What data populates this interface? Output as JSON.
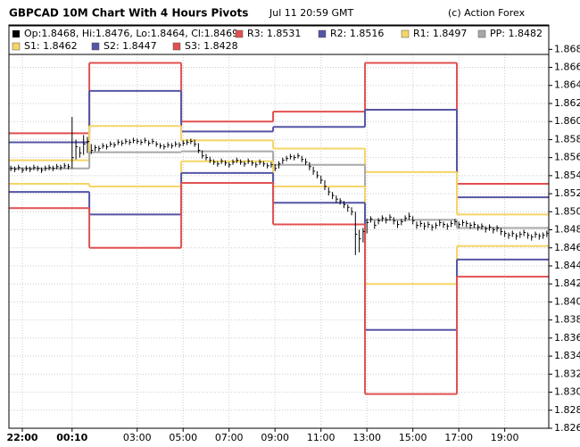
{
  "chart_data": {
    "type": "ohlc",
    "title": "GBPCAD 10M Chart With 4 Hours Pivots",
    "date": "Jul 11 20:59 GMT",
    "credit": "(c) Action Forex",
    "ohlc_label": "Op:1.8468, Hi:1.8476, Lo:1.8464, Cl:1.8469",
    "ohlc_color": "#000000",
    "grid": true,
    "ylim": [
      1.826,
      1.8707
    ],
    "yticks": [
      1.826,
      1.828,
      {
        "value": 1.83,
        "label": "1.830"
      },
      1.832,
      1.834,
      1.836,
      1.838,
      {
        "value": 1.84,
        "label": "1.840"
      },
      1.842,
      1.844,
      1.846,
      1.848,
      {
        "value": 1.85,
        "label": "1.850"
      },
      1.852,
      1.854,
      1.856,
      1.858,
      {
        "value": 1.86,
        "label": "1.860"
      },
      1.862,
      1.864,
      1.866,
      1.868
    ],
    "xlim": [
      0,
      141
    ],
    "xticks": [
      {
        "value": 3,
        "label": "22:00"
      },
      {
        "value": 16,
        "label": "00:10"
      },
      {
        "value": 33,
        "label": "03:00"
      },
      {
        "value": 45,
        "label": "05:00"
      },
      {
        "value": 57,
        "label": "07:00"
      },
      {
        "value": 69,
        "label": "09:00"
      },
      {
        "value": 81,
        "label": "11:00"
      },
      {
        "value": 93,
        "label": "13:00"
      },
      {
        "value": 105,
        "label": "15:00"
      },
      {
        "value": 117,
        "label": "17:00"
      },
      {
        "value": 129,
        "label": "19:00"
      }
    ],
    "close": [
      1.8548,
      1.8547,
      1.8549,
      1.8546,
      1.8548,
      1.8547,
      1.8549,
      1.8548,
      1.8546,
      1.8548,
      1.8549,
      1.8548,
      1.855,
      1.8549,
      1.8551,
      1.855,
      1.856,
      1.8572,
      1.8565,
      1.8575,
      1.8578,
      1.8568,
      1.8571,
      1.857,
      1.8573,
      1.8572,
      1.8575,
      1.8574,
      1.8577,
      1.8576,
      1.8578,
      1.8577,
      1.8579,
      1.8578,
      1.8577,
      1.8579,
      1.8576,
      1.8578,
      1.8575,
      1.8573,
      1.8572,
      1.8574,
      1.8573,
      1.8575,
      1.8574,
      1.8576,
      1.8577,
      1.8578,
      1.8575,
      1.8568,
      1.8562,
      1.856,
      1.8557,
      1.8555,
      1.8553,
      1.8556,
      1.8554,
      1.8552,
      1.8555,
      1.8557,
      1.8555,
      1.8553,
      1.8556,
      1.8554,
      1.8552,
      1.8555,
      1.8553,
      1.8551,
      1.8552,
      1.8548,
      1.8553,
      1.8557,
      1.8559,
      1.8561,
      1.856,
      1.8562,
      1.8558,
      1.8555,
      1.855,
      1.8545,
      1.854,
      1.8535,
      1.8528,
      1.8522,
      1.8518,
      1.8514,
      1.8512,
      1.8508,
      1.8505,
      1.85,
      1.8475,
      1.847,
      1.8478,
      1.8488,
      1.8492,
      1.8485,
      1.849,
      1.8493,
      1.8491,
      1.8494,
      1.849,
      1.8486,
      1.8489,
      1.8493,
      1.8495,
      1.849,
      1.8485,
      1.8487,
      1.8484,
      1.8486,
      1.8483,
      1.8485,
      1.8488,
      1.8486,
      1.8484,
      1.8487,
      1.8489,
      1.8486,
      1.8488,
      1.8487,
      1.8485,
      1.8486,
      1.8483,
      1.8484,
      1.8481,
      1.8483,
      1.848,
      1.8482,
      1.8478,
      1.8476,
      1.8474,
      1.8476,
      1.8473,
      1.8475,
      1.8477,
      1.8474,
      1.8472,
      1.8475,
      1.8473,
      1.8474,
      1.8476
    ],
    "high": [
      1.8551,
      1.855,
      1.8552,
      1.8549,
      1.8551,
      1.855,
      1.8552,
      1.8551,
      1.8549,
      1.8551,
      1.8552,
      1.8551,
      1.8553,
      1.8552,
      1.8554,
      1.8553,
      1.8605,
      1.858,
      1.8572,
      1.8585,
      1.8583,
      1.8575,
      1.8574,
      1.8573,
      1.8576,
      1.8575,
      1.8578,
      1.8577,
      1.858,
      1.8579,
      1.8581,
      1.858,
      1.8582,
      1.8581,
      1.858,
      1.8582,
      1.8579,
      1.8581,
      1.8578,
      1.8576,
      1.8575,
      1.8577,
      1.8576,
      1.8578,
      1.8577,
      1.8579,
      1.858,
      1.8581,
      1.858,
      1.8576,
      1.8568,
      1.8564,
      1.8561,
      1.8558,
      1.8556,
      1.8559,
      1.8557,
      1.8555,
      1.8558,
      1.856,
      1.8558,
      1.8556,
      1.8559,
      1.8557,
      1.8555,
      1.8558,
      1.8556,
      1.8554,
      1.8555,
      1.8553,
      1.8556,
      1.856,
      1.8562,
      1.8564,
      1.8563,
      1.8565,
      1.8562,
      1.8559,
      1.8555,
      1.855,
      1.8545,
      1.854,
      1.8535,
      1.8527,
      1.8522,
      1.8518,
      1.8515,
      1.8512,
      1.8508,
      1.8505,
      1.85,
      1.848,
      1.8482,
      1.8492,
      1.8495,
      1.849,
      1.8493,
      1.8496,
      1.8494,
      1.8497,
      1.8494,
      1.849,
      1.8492,
      1.8496,
      1.8499,
      1.8495,
      1.8489,
      1.849,
      1.8488,
      1.8489,
      1.8486,
      1.8488,
      1.8491,
      1.8489,
      1.8487,
      1.849,
      1.8492,
      1.8489,
      1.8491,
      1.849,
      1.8488,
      1.8489,
      1.8486,
      1.8487,
      1.8484,
      1.8486,
      1.8483,
      1.8485,
      1.8482,
      1.8479,
      1.8477,
      1.8479,
      1.8476,
      1.8478,
      1.848,
      1.8477,
      1.8475,
      1.8478,
      1.8476,
      1.8477,
      1.8479
    ],
    "low": [
      1.8545,
      1.8544,
      1.8546,
      1.8543,
      1.8545,
      1.8544,
      1.8546,
      1.8545,
      1.8543,
      1.8545,
      1.8546,
      1.8545,
      1.8547,
      1.8546,
      1.8548,
      1.8547,
      1.8548,
      1.8558,
      1.856,
      1.8563,
      1.8565,
      1.8564,
      1.8567,
      1.8567,
      1.857,
      1.8569,
      1.8572,
      1.8571,
      1.8574,
      1.8573,
      1.8575,
      1.8574,
      1.8576,
      1.8575,
      1.8574,
      1.8576,
      1.8573,
      1.8575,
      1.8572,
      1.857,
      1.8569,
      1.8571,
      1.857,
      1.8572,
      1.8571,
      1.8573,
      1.8574,
      1.8575,
      1.8572,
      1.8565,
      1.8559,
      1.8557,
      1.8554,
      1.8552,
      1.855,
      1.8553,
      1.8551,
      1.8549,
      1.8552,
      1.8554,
      1.8552,
      1.855,
      1.8553,
      1.8551,
      1.8549,
      1.8552,
      1.855,
      1.8548,
      1.8549,
      1.8545,
      1.8548,
      1.8553,
      1.8556,
      1.8558,
      1.8557,
      1.8559,
      1.8555,
      1.8552,
      1.8546,
      1.8541,
      1.8537,
      1.8531,
      1.8524,
      1.8518,
      1.8514,
      1.851,
      1.8508,
      1.8504,
      1.85,
      1.8496,
      1.8452,
      1.8455,
      1.8466,
      1.8476,
      1.8488,
      1.8481,
      1.8486,
      1.8489,
      1.8487,
      1.849,
      1.8486,
      1.8482,
      1.8485,
      1.8489,
      1.8491,
      1.8486,
      1.8481,
      1.8483,
      1.848,
      1.8482,
      1.8479,
      1.8481,
      1.8484,
      1.8482,
      1.848,
      1.8483,
      1.8485,
      1.8482,
      1.8484,
      1.8483,
      1.8481,
      1.8482,
      1.8479,
      1.848,
      1.8477,
      1.8479,
      1.8476,
      1.8478,
      1.8474,
      1.8472,
      1.847,
      1.8472,
      1.8469,
      1.8471,
      1.8473,
      1.847,
      1.8468,
      1.8471,
      1.8469,
      1.847,
      1.8472
    ],
    "series": [
      {
        "name": "R3: 1.8531",
        "color": "#e05050",
        "values": [
          1.8587,
          1.8665,
          1.86,
          1.8611,
          1.8665,
          1.8531
        ]
      },
      {
        "name": "R2: 1.8516",
        "color": "#5555a5",
        "values": [
          1.8577,
          1.8634,
          1.8589,
          1.8594,
          1.8613,
          1.8516
        ]
      },
      {
        "name": "R1: 1.8497",
        "color": "#f5d565",
        "values": [
          1.8557,
          1.8595,
          1.8579,
          1.857,
          1.8544,
          1.8497
        ]
      },
      {
        "name": "PP: 1.8482",
        "color": "#a8a8a8",
        "values": [
          1.8548,
          1.8566,
          1.8567,
          1.8552,
          1.8491,
          1.8482
        ]
      },
      {
        "name": "S1: 1.8462",
        "color": "#f5d565",
        "values": [
          1.8531,
          1.8528,
          1.8556,
          1.8528,
          1.842,
          1.8462
        ]
      },
      {
        "name": "S2: 1.8447",
        "color": "#5555a5",
        "values": [
          1.8522,
          1.8497,
          1.8543,
          1.851,
          1.8369,
          1.8447
        ]
      },
      {
        "name": "S3: 1.8428",
        "color": "#e05050",
        "values": [
          1.8504,
          1.846,
          1.8532,
          1.8486,
          1.8298,
          1.8428
        ]
      }
    ]
  }
}
